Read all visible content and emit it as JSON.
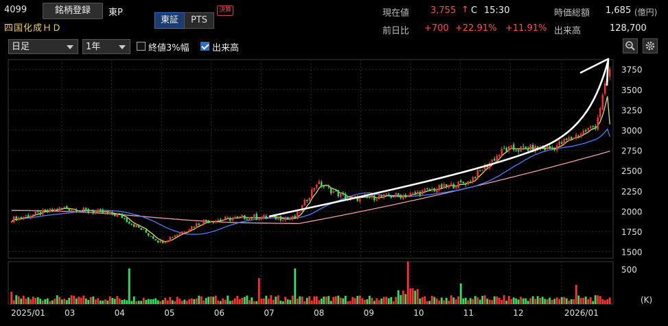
{
  "header": {
    "code": "4099",
    "register_label": "銘柄登録",
    "market": "東P",
    "name": "四国化成ＨＤ",
    "exchange_tabs": [
      "東証",
      "PTS"
    ],
    "settlement_badge": "決算",
    "price_label": "現在値",
    "price": "3,755",
    "price_arrow": "↑",
    "price_flag": "C",
    "time": "15:30",
    "mcap_label": "時価総額",
    "mcap": "1,685",
    "mcap_unit": "(億円)",
    "prev_label": "前日比",
    "change": "+700",
    "change_pct": "+22.91%",
    "change_pct2": "+11.91%",
    "volume_label": "出来高",
    "volume": "128,700"
  },
  "toolbar": {
    "period": "日足",
    "range": "1年",
    "opt_band_label": "終値3%幅",
    "opt_band_checked": false,
    "opt_volume_label": "出来高",
    "opt_volume_checked": true,
    "zoom_icon": "zoom-icon",
    "settings_icon": "gear-icon"
  },
  "colors": {
    "up": "#ff3030",
    "down": "#30e060",
    "ma_short": "#d8e060",
    "ma_mid": "#4a80ff",
    "ma_long": "#f0a0b0",
    "arrow": "#ffffff"
  },
  "chart_data": {
    "type": "candlestick",
    "price_axis": {
      "ticks": [
        1500,
        1750,
        2000,
        2250,
        2500,
        2750,
        3000,
        3250,
        3500,
        3750
      ],
      "range": [
        1420,
        3870
      ]
    },
    "volume_axis": {
      "ticks": [
        "500"
      ],
      "unit": "(K)",
      "range": [
        0,
        620
      ]
    },
    "x_labels": [
      "2025/01",
      "03",
      "04",
      "05",
      "06",
      "07",
      "08",
      "09",
      "10",
      "11",
      "12",
      "2026/01"
    ],
    "close_waypoints": [
      {
        "date": "2025/01",
        "close": 1900
      },
      {
        "date": "2025/02",
        "close": 2040
      },
      {
        "date": "2025/03",
        "close": 1950
      },
      {
        "date": "2025/04",
        "close": 1620
      },
      {
        "date": "2025/05",
        "close": 1880
      },
      {
        "date": "2025/06",
        "close": 1930
      },
      {
        "date": "2025/07",
        "close": 1910
      },
      {
        "date": "2025/07 late",
        "close": 2350
      },
      {
        "date": "2025/08",
        "close": 2150
      },
      {
        "date": "2025/09",
        "close": 2200
      },
      {
        "date": "2025/10",
        "close": 2360
      },
      {
        "date": "2025/11",
        "close": 2760
      },
      {
        "date": "2025/12",
        "close": 2780
      },
      {
        "date": "2026/01",
        "close": 3055
      },
      {
        "date": "2026/01 last",
        "close": 3755
      }
    ],
    "last_close": 3755,
    "ma_end": {
      "short": 3070,
      "mid": 2920,
      "long": 2740
    },
    "volume_peaks_k": [
      180,
      520,
      380,
      520,
      620,
      300,
      280
    ]
  }
}
